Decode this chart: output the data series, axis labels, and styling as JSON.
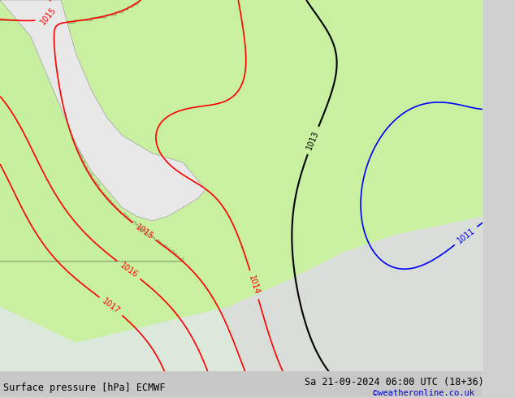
{
  "title_left": "Surface pressure [hPa] ECMWF",
  "title_right": "Sa 21-09-2024 06:00 UTC (18+36)",
  "credit": "©weatheronline.co.uk",
  "credit_color": "#0000cc",
  "background_color": "#d0d0d0",
  "land_color": "#e8e8e8",
  "highlight_color": "#c8f0a0",
  "text_color": "#000000",
  "bottom_bar_color": "#c8c8c8",
  "figsize": [
    6.34,
    4.9
  ],
  "dpi": 100
}
